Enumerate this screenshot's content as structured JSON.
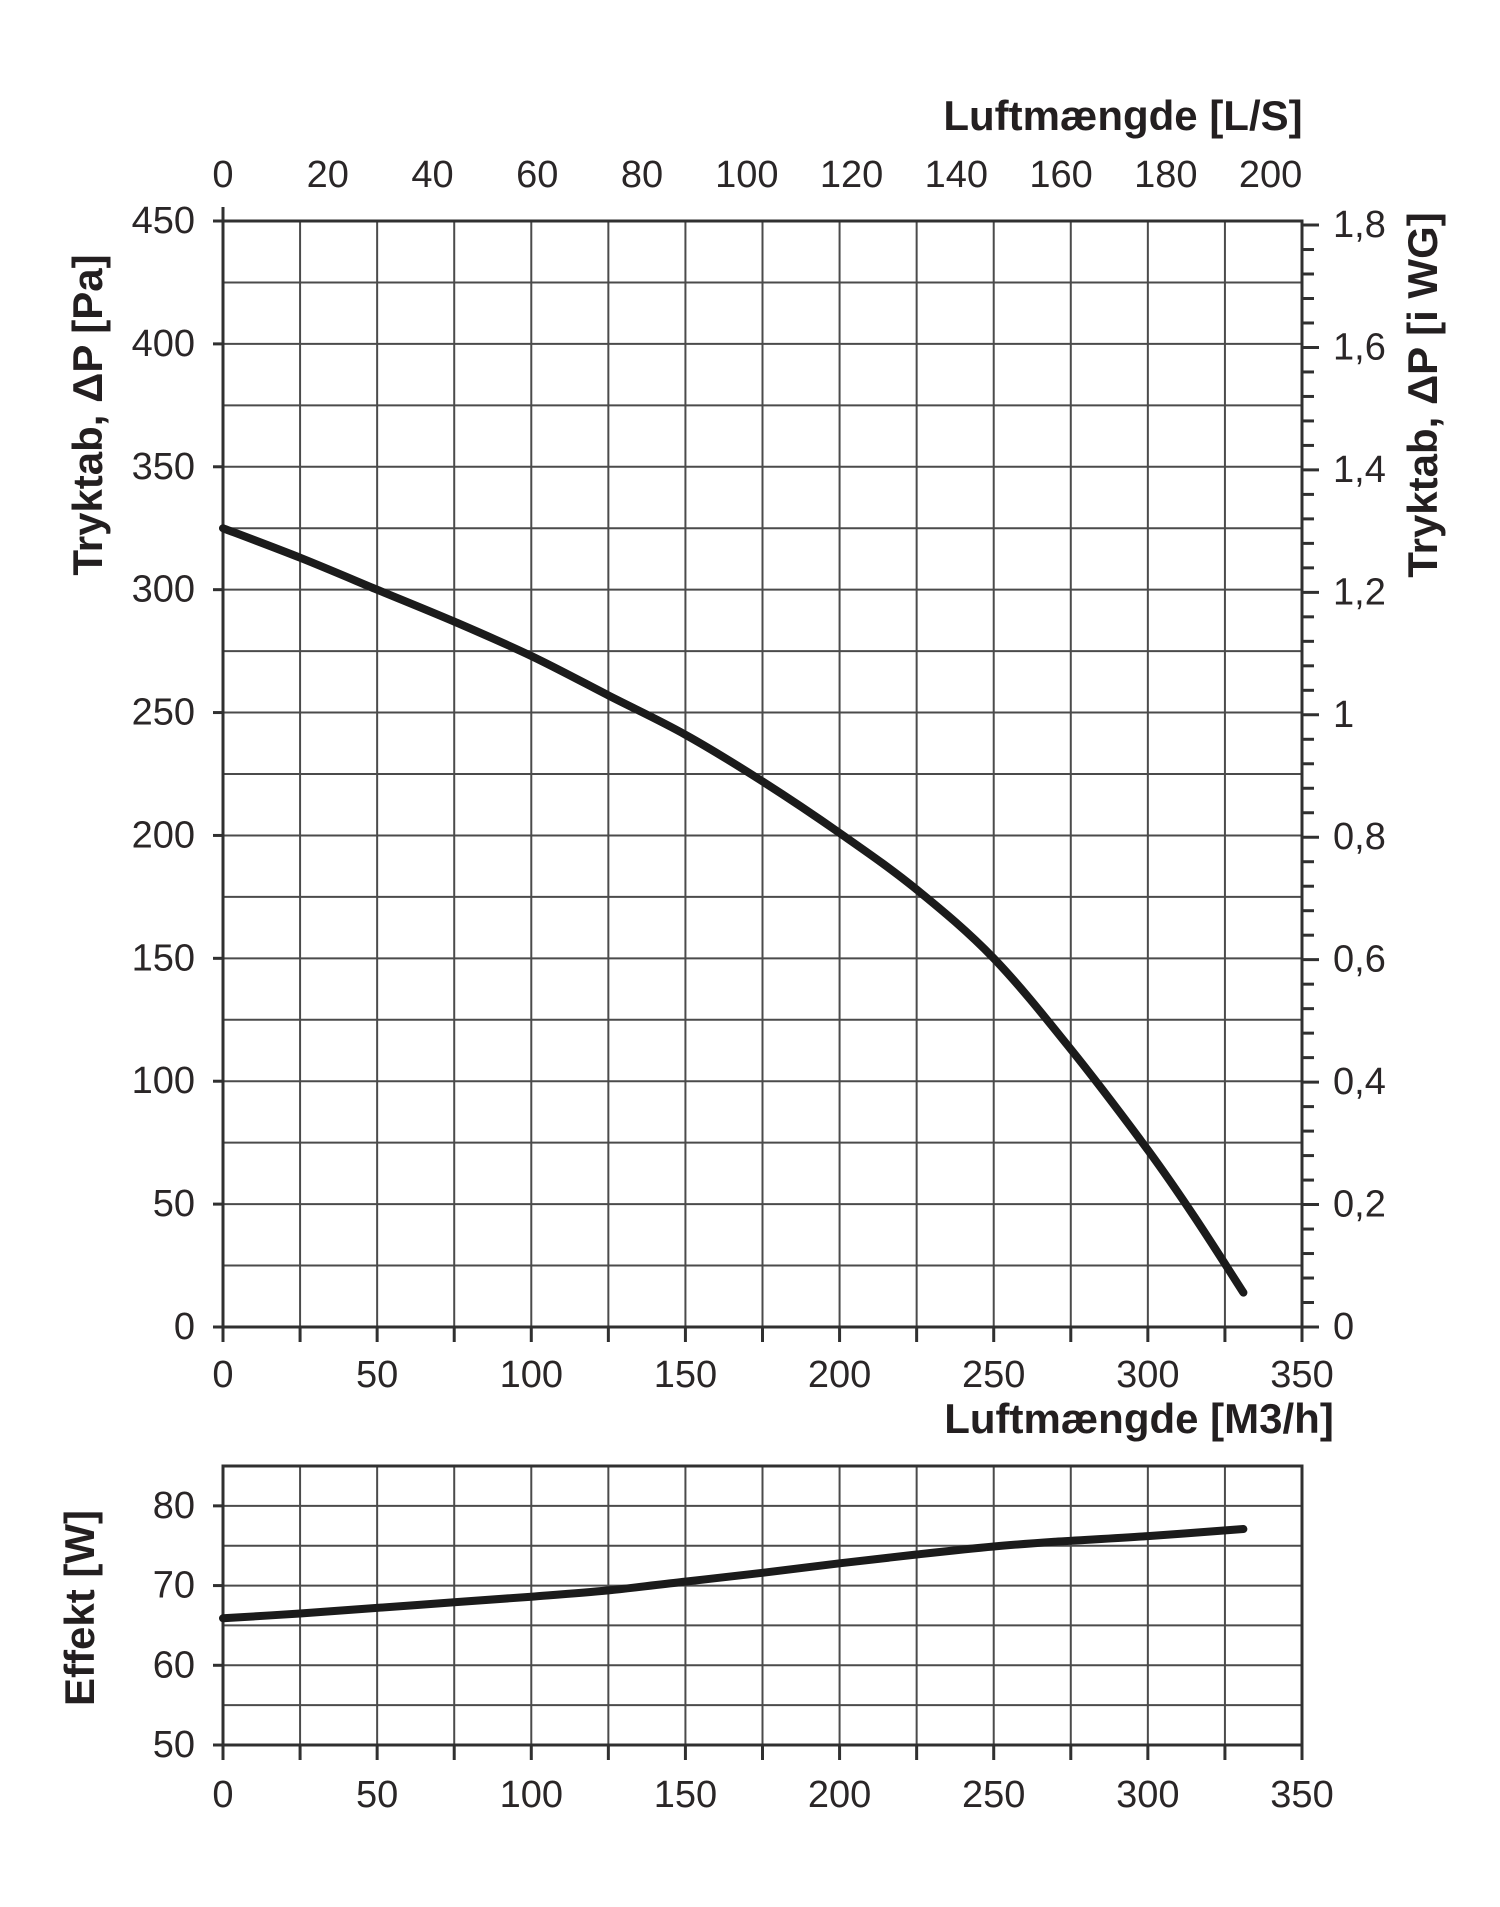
{
  "colors": {
    "background": "#ffffff",
    "grid": "#4b4b4b",
    "axis": "#303030",
    "curve": "#1b1b1b",
    "text": "#231f20"
  },
  "chart_data": [
    {
      "id": "pressure-drop-chart",
      "type": "line",
      "grid": true,
      "top_axis": {
        "title": "Luftmængde [L/S]",
        "unit": "L/S",
        "ticks": [
          0,
          20,
          40,
          60,
          80,
          100,
          120,
          140,
          160,
          180,
          200
        ],
        "tick_labels": [
          "0",
          "20",
          "40",
          "60",
          "80",
          "100",
          "120",
          "140",
          "160",
          "180",
          "200"
        ],
        "m3h_per_unit": 1.699
      },
      "bottom_axis": {
        "title": "Luftmængde [M3/h]",
        "unit": "M3/h",
        "min": 0,
        "max": 350,
        "grid_step": 25,
        "label_step": 50,
        "tick_labels": [
          "0",
          "50",
          "100",
          "150",
          "200",
          "250",
          "300",
          "350"
        ]
      },
      "left_axis": {
        "title": "Tryktab, ΔP [Pa]",
        "unit": "Pa",
        "min": 0,
        "max": 450,
        "grid_step": 25,
        "label_step": 50,
        "tick_labels": [
          "0",
          "50",
          "100",
          "150",
          "200",
          "250",
          "300",
          "350",
          "400",
          "450"
        ]
      },
      "right_axis": {
        "title": "Tryktab, ΔP [i WG]",
        "unit": "i WG",
        "min": 0,
        "max": 1.8,
        "minor_step": 0.04,
        "major_step": 0.2,
        "pa_per_unit": 249.089,
        "tick_labels": [
          "0",
          "0,2",
          "0,4",
          "0,6",
          "0,8",
          "1",
          "1,2",
          "1,4",
          "1,6",
          "1,8"
        ]
      },
      "series": [
        {
          "name": "pressure-drop-curve",
          "points": [
            [
              0,
              325
            ],
            [
              25,
              313
            ],
            [
              50,
              300
            ],
            [
              75,
              287
            ],
            [
              100,
              273
            ],
            [
              125,
              257
            ],
            [
              150,
              241
            ],
            [
              175,
              222
            ],
            [
              200,
              201
            ],
            [
              225,
              178
            ],
            [
              250,
              150
            ],
            [
              275,
              113
            ],
            [
              300,
              72
            ],
            [
              315,
              45
            ],
            [
              331,
              14
            ]
          ]
        }
      ]
    },
    {
      "id": "power-chart",
      "type": "line",
      "grid": true,
      "bottom_axis": {
        "unit": "M3/h",
        "min": 0,
        "max": 350,
        "grid_step": 25,
        "label_step": 50,
        "tick_labels": [
          "0",
          "50",
          "100",
          "150",
          "200",
          "250",
          "300",
          "350"
        ]
      },
      "left_axis": {
        "title": "Effekt [W]",
        "unit": "W",
        "min": 50,
        "max": 85,
        "grid_step": 5,
        "label_step": 10,
        "label_values": [
          50,
          60,
          70,
          80
        ],
        "tick_labels": [
          "50",
          "60",
          "70",
          "80"
        ]
      },
      "series": [
        {
          "name": "power-curve",
          "points": [
            [
              0,
              65.9
            ],
            [
              25,
              66.5
            ],
            [
              50,
              67.2
            ],
            [
              75,
              67.9
            ],
            [
              100,
              68.6
            ],
            [
              125,
              69.4
            ],
            [
              150,
              70.5
            ],
            [
              175,
              71.6
            ],
            [
              200,
              72.8
            ],
            [
              225,
              73.9
            ],
            [
              250,
              74.9
            ],
            [
              270,
              75.5
            ],
            [
              300,
              76.2
            ],
            [
              331,
              77.1
            ]
          ]
        }
      ]
    }
  ]
}
